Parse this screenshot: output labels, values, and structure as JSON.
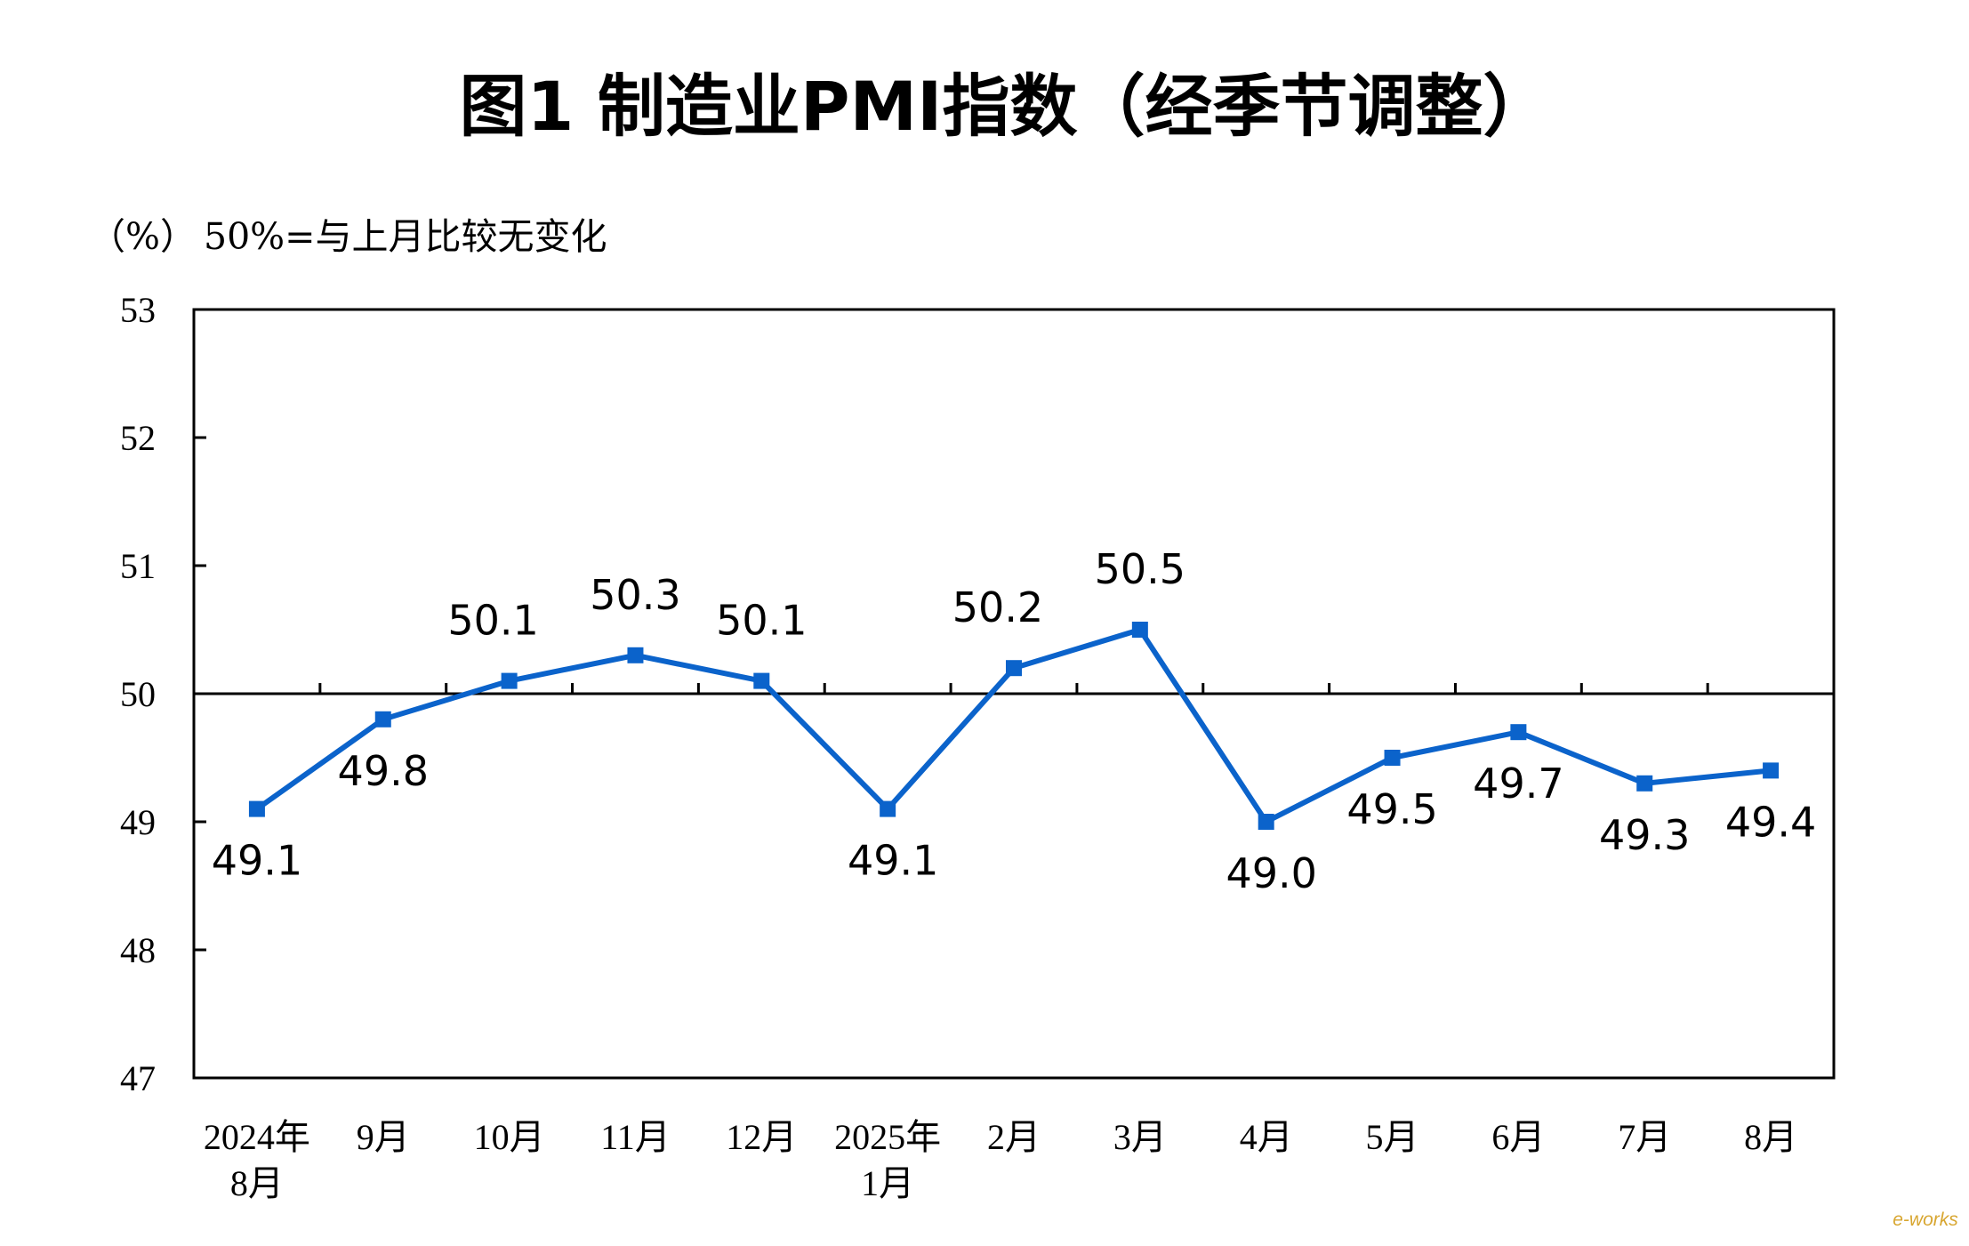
{
  "chart_data": {
    "type": "line",
    "title": "图1  制造业PMI指数（经季节调整）",
    "ylabel": "（%）",
    "note": "50%=与上月比较无变化",
    "ylim": [
      47,
      53
    ],
    "yticks": [
      "53",
      "52",
      "51",
      "50",
      "49",
      "48",
      "47"
    ],
    "reference_line": 50,
    "categories": [
      [
        "2024年",
        "8月"
      ],
      [
        "9月"
      ],
      [
        "10月"
      ],
      [
        "11月"
      ],
      [
        "12月"
      ],
      [
        "2025年",
        "1月"
      ],
      [
        "2月"
      ],
      [
        "3月"
      ],
      [
        "4月"
      ],
      [
        "5月"
      ],
      [
        "6月"
      ],
      [
        "7月"
      ],
      [
        "8月"
      ]
    ],
    "series": [
      {
        "values": [
          49.1,
          49.8,
          50.1,
          50.3,
          50.1,
          49.1,
          50.2,
          50.5,
          49.0,
          49.5,
          49.7,
          49.3,
          49.4
        ],
        "labels": [
          "49.1",
          "49.8",
          "50.1",
          "50.3",
          "50.1",
          "49.1",
          "50.2",
          "50.5",
          "49.0",
          "49.5",
          "49.7",
          "49.3",
          "49.4"
        ],
        "color": "#0b63cb"
      }
    ],
    "grid": false
  },
  "watermark": "e-works"
}
